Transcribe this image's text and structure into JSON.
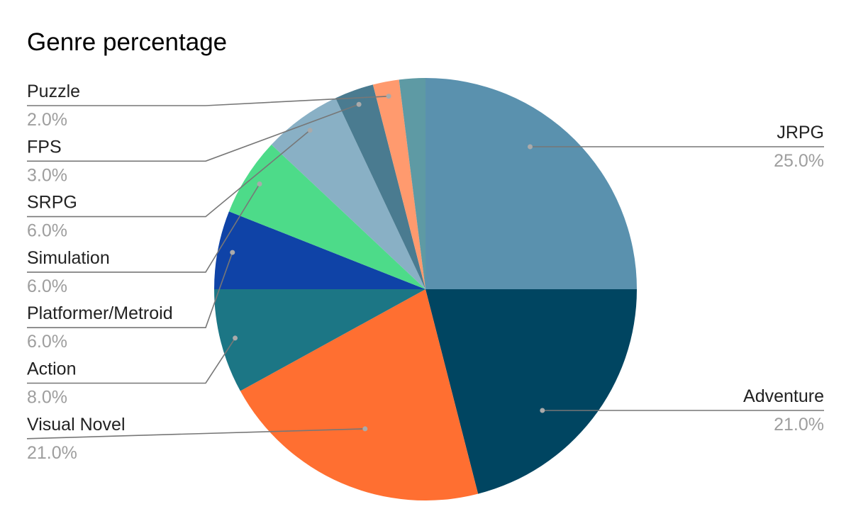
{
  "chart_data": {
    "type": "pie",
    "title": "Genre percentage",
    "slices": [
      {
        "label": "JRPG",
        "value_label": "25.0%",
        "value": 25.0,
        "color": "#5a91ae"
      },
      {
        "label": "Adventure",
        "value_label": "21.0%",
        "value": 21.0,
        "color": "#004561"
      },
      {
        "label": "Visual Novel",
        "value_label": "21.0%",
        "value": 21.0,
        "color": "#ff6f31"
      },
      {
        "label": "Action",
        "value_label": "8.0%",
        "value": 8.0,
        "color": "#1c7685"
      },
      {
        "label": "Platformer/Metroid",
        "value_label": "6.0%",
        "value": 6.0,
        "color": "#0f43a7"
      },
      {
        "label": "Simulation",
        "value_label": "6.0%",
        "value": 6.0,
        "color": "#4ddb89"
      },
      {
        "label": "SRPG",
        "value_label": "6.0%",
        "value": 6.0,
        "color": "#89b0c5"
      },
      {
        "label": "FPS",
        "value_label": "3.0%",
        "value": 3.0,
        "color": "#4a7b90"
      },
      {
        "label": "Puzzle",
        "value_label": "2.0%",
        "value": 2.0,
        "color": "#ff9a6e"
      },
      {
        "label": "",
        "value_label": "",
        "value": 2.0,
        "color": "#5e9aa4"
      }
    ],
    "start_angle": "12 o'clock",
    "direction": "clockwise",
    "legend": "none"
  }
}
